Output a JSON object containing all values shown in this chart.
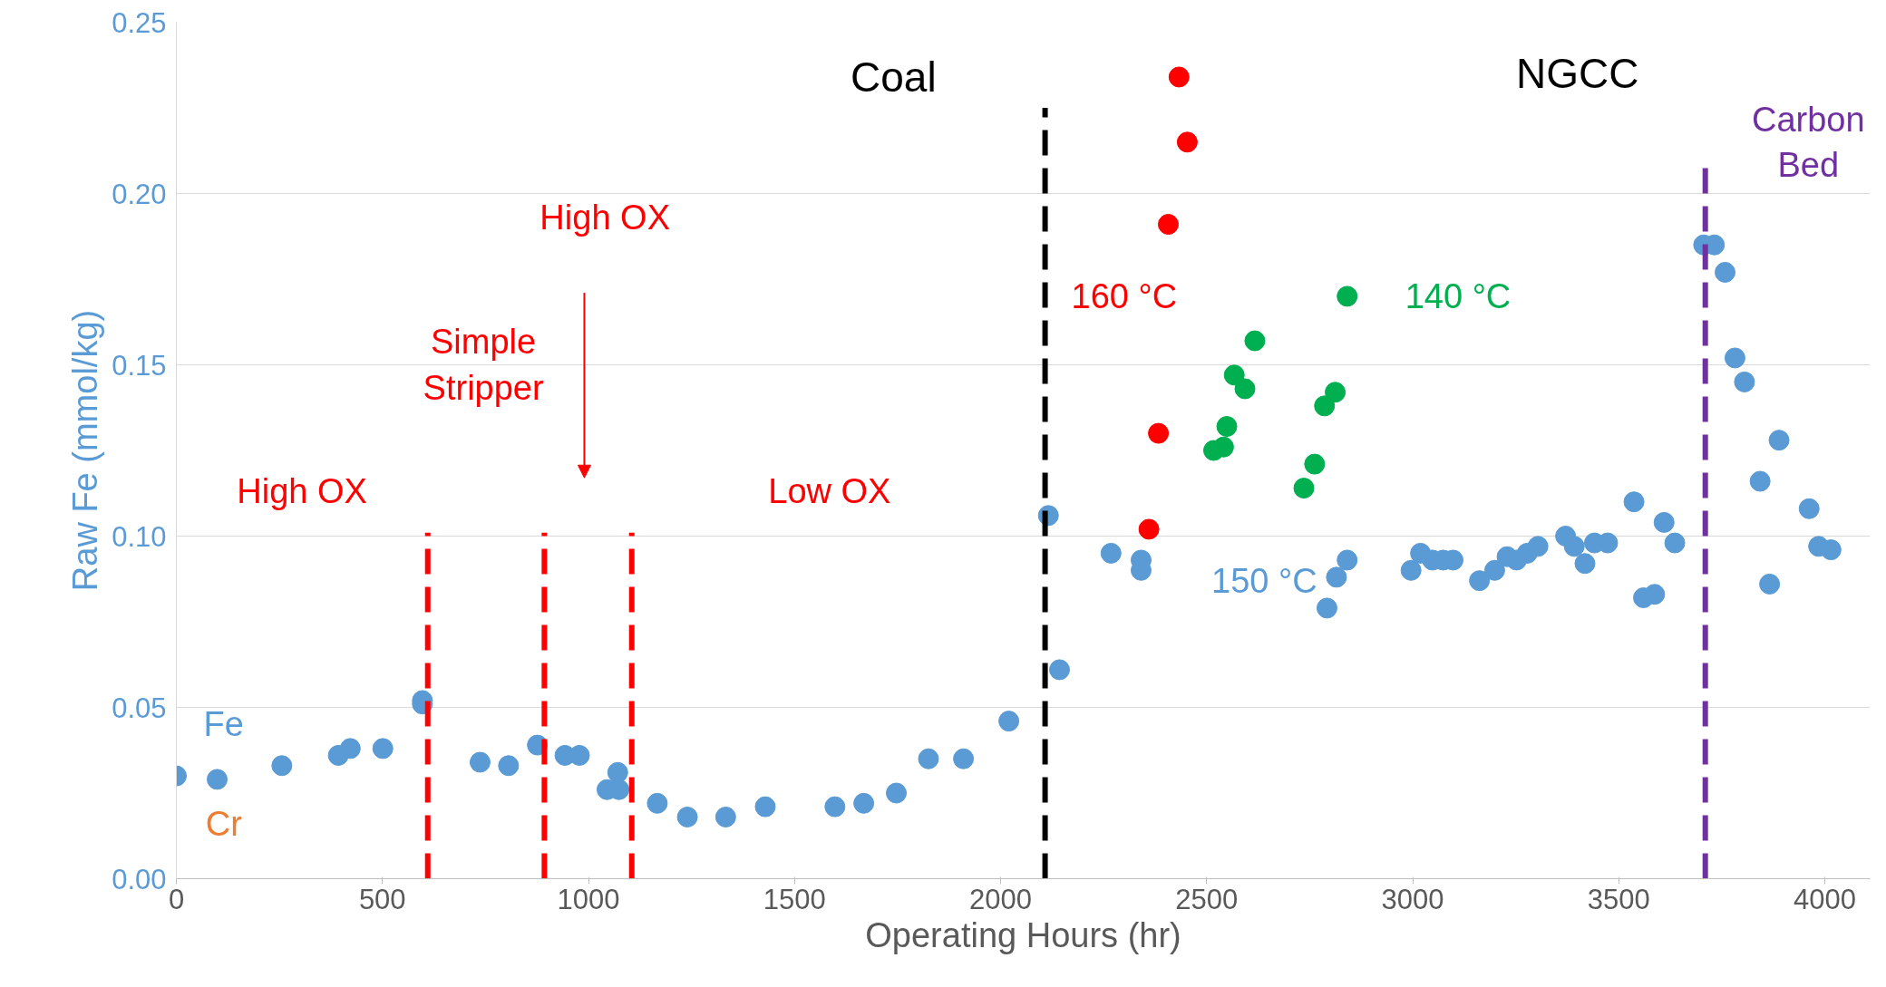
{
  "chart_data": {
    "type": "scatter",
    "xlabel": "Operating Hours (hr)",
    "ylabel": "Raw Fe (mmol/kg)",
    "xlim": [
      0,
      4110
    ],
    "ylim": [
      0,
      0.25
    ],
    "xticks": [
      0,
      500,
      1000,
      1500,
      2000,
      2500,
      3000,
      3500,
      4000
    ],
    "yticks": [
      {
        "value": 0,
        "label": "0.00"
      },
      {
        "value": 0.05,
        "label": "0.05"
      },
      {
        "value": 0.1,
        "label": "0.10"
      },
      {
        "value": 0.15,
        "label": "0.15"
      },
      {
        "value": 0.2,
        "label": "0.20"
      },
      {
        "value": 0.25,
        "label": "0.25"
      }
    ],
    "grid": "y",
    "legend": false,
    "marker": "circle",
    "series": [
      {
        "name": "150 °C",
        "color": "#5b9bd5",
        "x": [
          0,
          99,
          256,
          393,
          422,
          501,
          597,
          597,
          737,
          806,
          876,
          943,
          978,
          1045,
          1071,
          1074,
          1167,
          1240,
          1333,
          1429,
          1598,
          1668,
          1747,
          1825,
          1910,
          2020,
          2116,
          2143,
          2268,
          2341,
          2341,
          2792,
          2815,
          2841,
          2996,
          3019,
          3048,
          3074,
          3098,
          3162,
          3199,
          3229,
          3252,
          3278,
          3304,
          3371,
          3392,
          3418,
          3441,
          3473,
          3537,
          3560,
          3587,
          3610,
          3636,
          3706,
          3732,
          3758,
          3782,
          3805,
          3843,
          3866,
          3889,
          3962,
          3985,
          4015
        ],
        "values": [
          0.03,
          0.029,
          0.033,
          0.036,
          0.038,
          0.038,
          0.052,
          0.051,
          0.034,
          0.033,
          0.039,
          0.036,
          0.036,
          0.026,
          0.031,
          0.026,
          0.022,
          0.018,
          0.018,
          0.021,
          0.021,
          0.022,
          0.025,
          0.035,
          0.035,
          0.046,
          0.106,
          0.061,
          0.095,
          0.093,
          0.09,
          0.079,
          0.088,
          0.093,
          0.09,
          0.095,
          0.093,
          0.093,
          0.093,
          0.087,
          0.09,
          0.094,
          0.093,
          0.095,
          0.097,
          0.1,
          0.097,
          0.092,
          0.098,
          0.098,
          0.11,
          0.082,
          0.083,
          0.104,
          0.098,
          0.185,
          0.185,
          0.177,
          0.152,
          0.145,
          0.116,
          0.086,
          0.128,
          0.108,
          0.097,
          0.096
        ]
      },
      {
        "name": "160 °C",
        "color": "#ff0000",
        "x": [
          2433,
          2453,
          2407,
          2383,
          2360
        ],
        "values": [
          0.234,
          0.215,
          0.191,
          0.13,
          0.102
        ]
      },
      {
        "name": "140 °C",
        "color": "#00b050",
        "x": [
          2841,
          2617,
          2567,
          2593,
          2549,
          2517,
          2541,
          2812,
          2786,
          2762,
          2736
        ],
        "values": [
          0.17,
          0.157,
          0.147,
          0.143,
          0.132,
          0.125,
          0.126,
          0.142,
          0.138,
          0.121,
          0.114
        ]
      },
      {
        "type": "line",
        "marker": "none",
        "line_style": "dashed",
        "color": "#ff0000",
        "x": [
          610,
          610
        ],
        "values": [
          0,
          0.101
        ]
      },
      {
        "type": "line",
        "marker": "none",
        "line_style": "dashed",
        "color": "#ff0000",
        "x": [
          893,
          893
        ],
        "values": [
          0,
          0.101
        ]
      },
      {
        "type": "line",
        "marker": "none",
        "line_style": "dashed",
        "color": "#ff0000",
        "x": [
          1105,
          1105
        ],
        "values": [
          0,
          0.101
        ]
      },
      {
        "type": "line",
        "marker": "none",
        "line_style": "dashed",
        "color": "#000000",
        "x": [
          2108,
          2108
        ],
        "values": [
          0,
          0.225
        ]
      },
      {
        "type": "line",
        "marker": "none",
        "line_style": "dashed",
        "color": "#7030a0",
        "x": [
          3710,
          3710
        ],
        "values": [
          0,
          0.208
        ]
      }
    ],
    "annotations": [
      "Coal",
      "NGCC",
      "Carbon\nBed",
      "High OX",
      "Simple\nStripper",
      "High OX",
      "Low OX",
      "Fe",
      "Cr"
    ]
  }
}
